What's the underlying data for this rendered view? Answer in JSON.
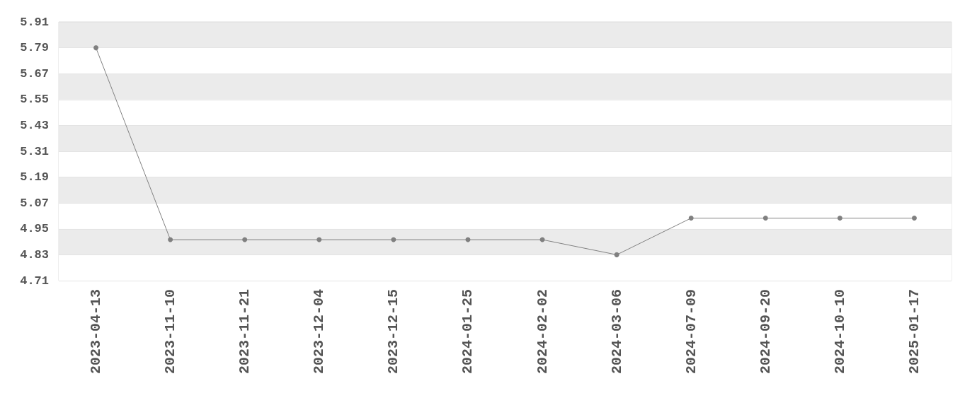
{
  "chart_data": {
    "type": "line",
    "categories": [
      "2023-04-13",
      "2023-11-10",
      "2023-11-21",
      "2023-12-04",
      "2023-12-15",
      "2024-01-25",
      "2024-02-02",
      "2024-03-06",
      "2024-07-09",
      "2024-09-20",
      "2024-10-10",
      "2025-01-17"
    ],
    "series": [
      {
        "color": "#808080",
        "values": [
          5.79,
          4.9,
          4.9,
          4.9,
          4.9,
          4.9,
          4.9,
          4.83,
          5,
          5,
          5,
          5
        ]
      }
    ],
    "ylim": [
      4.71,
      5.91
    ],
    "yticks": [
      4.71,
      4.83,
      4.95,
      5.07,
      5.19,
      5.31,
      5.43,
      5.55,
      5.67,
      5.79,
      5.91
    ],
    "grid": "y",
    "marker": "circle",
    "line_style": "solid"
  }
}
